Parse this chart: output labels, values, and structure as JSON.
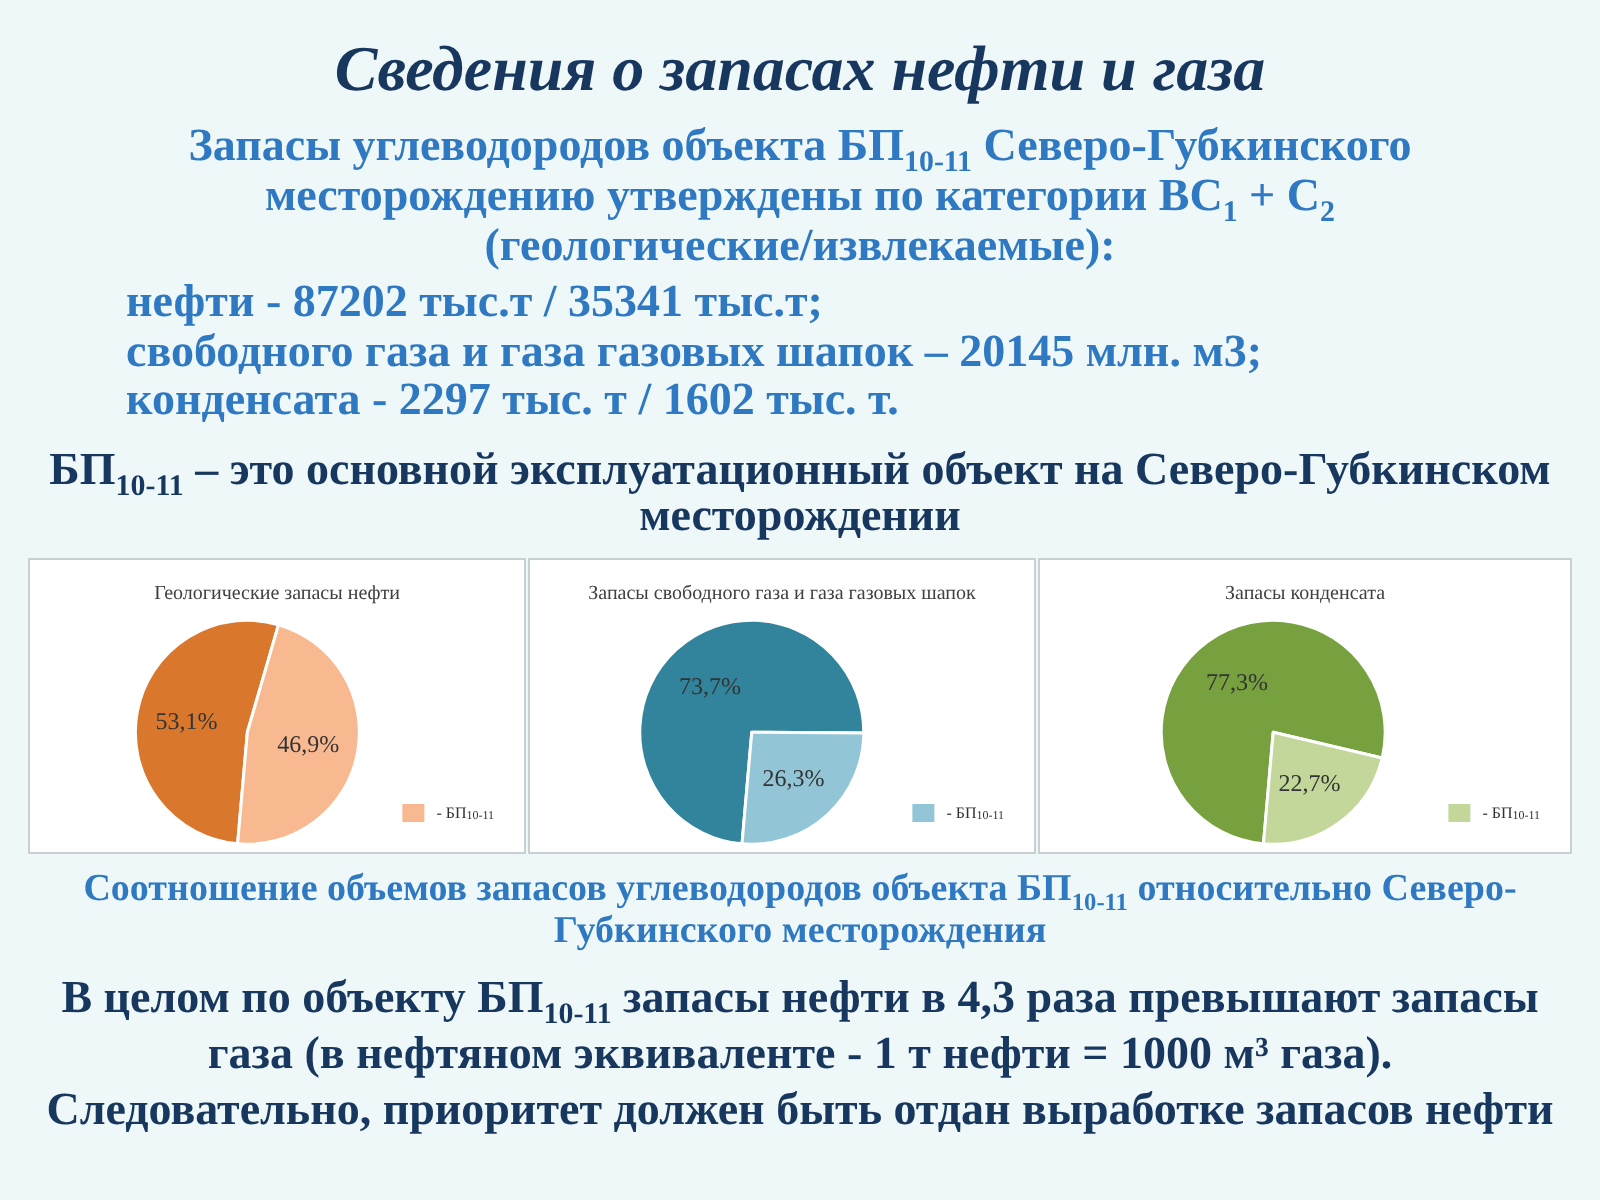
{
  "chart_data": [
    {
      "type": "other",
      "title": "Сведения о запасах нефти и газа",
      "subtitle": "Запасы углеводородов объекта БП$_{10-11}$ Северо-Губкинского месторождению утверждены по категории ВС$_{1}$ + С$_{2}$ (геологические/извлекаемые):",
      "annotations": [
        "нефти - 87202 тыс.т / 35341 тыс.т;",
        "свободного газа и газа газовых шапок – 20145 млн. м3;",
        "конденсата - 2297 тыс. т / 1602 тыс. т.",
        "БП$_{10-11}$ – это основной эксплуатационный объект на Северо-Губкинском месторождении"
      ]
    },
    {
      "type": "pie",
      "title": "Геологические запасы нефти",
      "categories": [
        null,
        "- БП$_{10-11}$"
      ],
      "values": [
        53.1,
        46.9
      ],
      "colors": [
        "#d9782d",
        "#f8b990"
      ],
      "value_labels": [
        "53,1%",
        "46,9%"
      ],
      "legend": "bottom right"
    },
    {
      "type": "pie",
      "title": "Запасы свободного газа и газа газовых шапок",
      "categories": [
        null,
        "- БП$_{10-11}$"
      ],
      "values": [
        73.7,
        26.3
      ],
      "colors": [
        "#31849b",
        "#92c5d6"
      ],
      "value_labels": [
        "73,7%",
        "26,3%"
      ],
      "legend": "bottom right"
    },
    {
      "type": "pie",
      "title": "Запасы конденсата",
      "categories": [
        null,
        "- БП$_{10-11}$"
      ],
      "values": [
        77.3,
        22.7
      ],
      "colors": [
        "#77a03e",
        "#c3d79b"
      ],
      "value_labels": [
        "77,3%",
        "22,7%"
      ],
      "legend": "bottom right"
    },
    {
      "type": "other",
      "annotations": [
        "Соотношение объемов запасов углеводородов объекта БП$_{10-11}$ относительно Северо-Губкинского месторождения",
        "В целом по объекту БП$_{10-11}$ запасы нефти в 4,3 раза превышают запасы газа (в нефтяном эквиваленте - 1 т нефти = 1000 м³ газа).",
        "Следовательно, приоритет должен быть отдан выработке запасов нефти"
      ]
    }
  ]
}
